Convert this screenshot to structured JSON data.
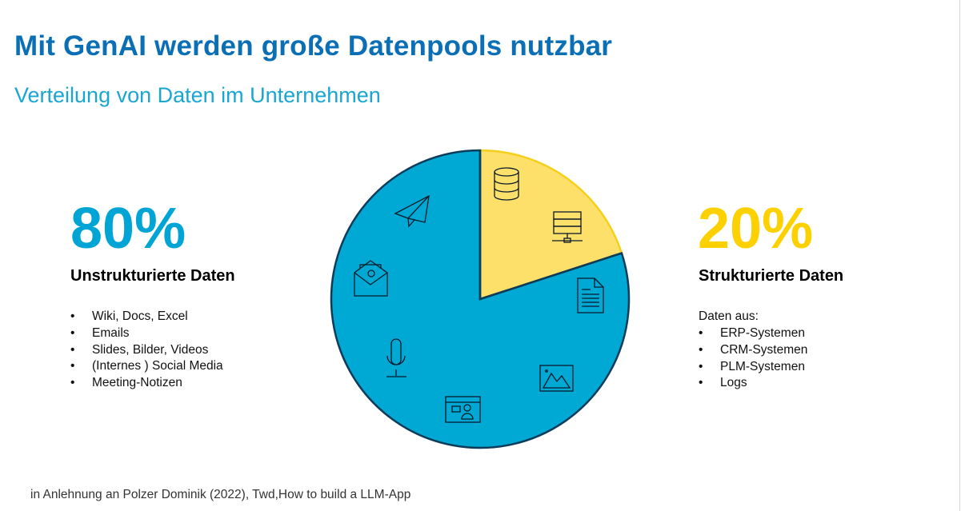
{
  "title": "Mit GenAI werden große Datenpools nutzbar",
  "subtitle": "Verteilung von Daten im Unternehmen",
  "unstructured": {
    "percent_label": "80%",
    "heading": "Unstrukturierte Daten",
    "items": [
      "Wiki, Docs, Excel",
      "Emails",
      "Slides, Bilder, Videos",
      "(Internes ) Social Media",
      "Meeting-Notizen"
    ]
  },
  "structured": {
    "percent_label": "20%",
    "heading": "Strukturierte Daten",
    "intro": "Daten aus:",
    "items": [
      "ERP-Systemen",
      "CRM-Systemen",
      "PLM-Systemen",
      "Logs"
    ]
  },
  "source": "in Anlehnung an Polzer Dominik (2022), Twd,How to build a LLM-App",
  "chart_data": {
    "type": "pie",
    "slices": [
      {
        "label": "Strukturierte Daten",
        "value": 20,
        "color": "#fde06a",
        "icons": [
          "database-icon",
          "server-network-icon"
        ]
      },
      {
        "label": "Unstrukturierte Daten",
        "value": 80,
        "color": "#00a8d4",
        "icons": [
          "document-icon",
          "image-icon",
          "video-call-icon",
          "microphone-icon",
          "email-icon",
          "paper-plane-icon"
        ]
      }
    ],
    "start_angle": "top, clockwise"
  }
}
